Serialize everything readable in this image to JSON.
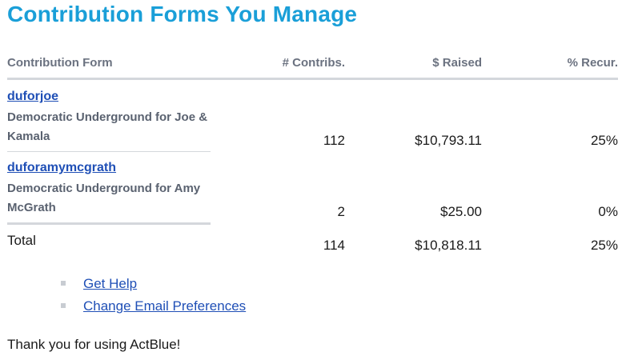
{
  "title": "Contribution Forms You Manage",
  "table": {
    "headers": {
      "form": "Contribution Form",
      "contribs": "# Contribs.",
      "raised": "$ Raised",
      "recur": "% Recur."
    },
    "rows": [
      {
        "slug": "duforjoe",
        "name": "Democratic Underground for Joe & Kamala",
        "contribs": "112",
        "raised": "$10,793.11",
        "recur": "25%"
      },
      {
        "slug": "duforamymcgrath",
        "name": "Democratic Underground for Amy McGrath",
        "contribs": "2",
        "raised": "$25.00",
        "recur": "0%"
      }
    ],
    "total": {
      "label": "Total",
      "contribs": "114",
      "raised": "$10,818.11",
      "recur": "25%"
    }
  },
  "links": [
    {
      "label": "Get Help"
    },
    {
      "label": "Change Email Preferences"
    }
  ],
  "footer": {
    "thanks": "Thank you for using ActBlue!"
  },
  "colors": {
    "title": "#1a9fd8",
    "link": "#1f4fb6",
    "header_text": "#6b7280",
    "rule": "#d4d7dc"
  }
}
